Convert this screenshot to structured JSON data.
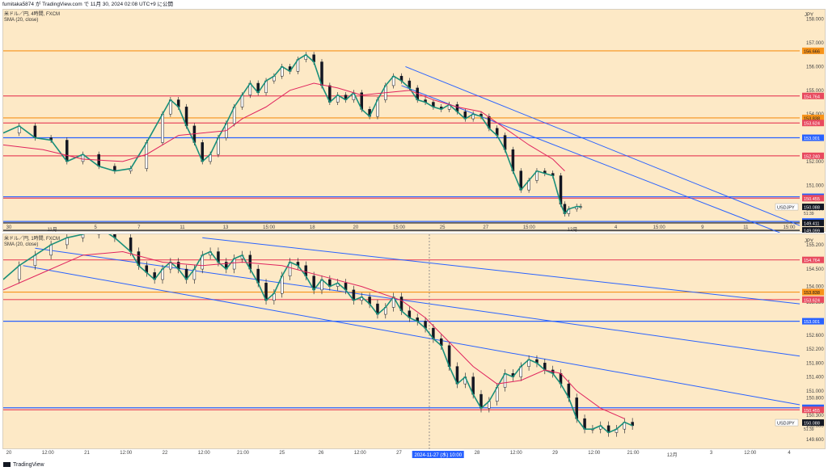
{
  "header": {
    "attribution": "fumitaka5874 が TradingView.com で 11月 30, 2024 02:08 UTC+9 に公開"
  },
  "footer": {
    "brand": "TradingView"
  },
  "chart_data": [
    {
      "type": "line",
      "pane": "upper",
      "legend": [
        "米ドル／円, 4時間, FXCM",
        "SMA (20, close)"
      ],
      "currency": "JPY",
      "symbol_tag": "USDJPY",
      "last_price": "150.088",
      "countdown": "51:39",
      "ylim": [
        149.0,
        158.4
      ],
      "y_ticks": [
        "158.000",
        "157.000",
        "156.000",
        "155.000",
        "154.000",
        "153.000",
        "152.000",
        "151.000",
        "150.000"
      ],
      "x_ticks": [
        "30",
        "11月",
        "5",
        "7",
        "11",
        "13",
        "15:00",
        "18",
        "20",
        "15:00",
        "25",
        "27",
        "15:00",
        "12月",
        "4",
        "15:00",
        "9",
        "11",
        "15:00"
      ],
      "horizontal_levels": [
        {
          "value": 156.666,
          "label": "156.666",
          "color": "#f7931a"
        },
        {
          "value": 154.764,
          "label": "154.764",
          "color": "#e84a5f"
        },
        {
          "value": 153.838,
          "label": "153.838",
          "color": "#f7931a"
        },
        {
          "value": 153.624,
          "label": "153.624",
          "color": "#e84a5f"
        },
        {
          "value": 153.001,
          "label": "153.001",
          "color": "#2962ff"
        },
        {
          "value": 152.24,
          "label": "152.240",
          "color": "#e84a5f"
        },
        {
          "value": 150.513,
          "label": "150.513",
          "color": "#2962ff"
        },
        {
          "value": 150.455,
          "label": "150.455",
          "color": "#e84a5f"
        },
        {
          "value": 149.472,
          "label": "149.472",
          "color": "#2962ff"
        },
        {
          "value": 149.411,
          "label": "149.411",
          "color": "#131722"
        },
        {
          "value": 149.099,
          "label": "149.099",
          "color": "#131722"
        }
      ],
      "price_path": [
        [
          0,
          153.2
        ],
        [
          4,
          153.5
        ],
        [
          8,
          153.0
        ],
        [
          12,
          152.9
        ],
        [
          16,
          152.0
        ],
        [
          20,
          152.3
        ],
        [
          24,
          151.8
        ],
        [
          28,
          151.6
        ],
        [
          32,
          151.7
        ],
        [
          36,
          152.8
        ],
        [
          40,
          154.0
        ],
        [
          42,
          154.6
        ],
        [
          44,
          154.3
        ],
        [
          46,
          153.5
        ],
        [
          48,
          152.8
        ],
        [
          50,
          152.0
        ],
        [
          52,
          152.3
        ],
        [
          54,
          153.0
        ],
        [
          56,
          153.6
        ],
        [
          58,
          154.3
        ],
        [
          60,
          154.8
        ],
        [
          62,
          155.3
        ],
        [
          64,
          154.9
        ],
        [
          66,
          155.4
        ],
        [
          68,
          155.6
        ],
        [
          70,
          156.0
        ],
        [
          72,
          155.8
        ],
        [
          74,
          156.3
        ],
        [
          76,
          156.5
        ],
        [
          78,
          156.2
        ],
        [
          80,
          155.2
        ],
        [
          82,
          154.5
        ],
        [
          84,
          154.8
        ],
        [
          86,
          154.6
        ],
        [
          88,
          154.9
        ],
        [
          90,
          154.2
        ],
        [
          92,
          153.9
        ],
        [
          94,
          154.6
        ],
        [
          96,
          155.2
        ],
        [
          98,
          155.6
        ],
        [
          100,
          155.4
        ],
        [
          102,
          155.1
        ],
        [
          104,
          154.6
        ],
        [
          106,
          154.5
        ],
        [
          108,
          154.3
        ],
        [
          110,
          154.2
        ],
        [
          112,
          154.4
        ],
        [
          114,
          154.1
        ],
        [
          116,
          153.8
        ],
        [
          118,
          154.0
        ],
        [
          120,
          153.9
        ],
        [
          122,
          153.4
        ],
        [
          124,
          153.1
        ],
        [
          126,
          152.5
        ],
        [
          128,
          151.6
        ],
        [
          130,
          150.8
        ],
        [
          132,
          151.2
        ],
        [
          134,
          151.6
        ],
        [
          136,
          151.5
        ],
        [
          138,
          151.4
        ],
        [
          140,
          150.2
        ],
        [
          141,
          149.8
        ],
        [
          142,
          150.0
        ],
        [
          144,
          150.1
        ],
        [
          145,
          150.1
        ]
      ],
      "sma_path": [
        [
          0,
          152.7
        ],
        [
          10,
          152.5
        ],
        [
          20,
          152.1
        ],
        [
          30,
          152.0
        ],
        [
          36,
          152.3
        ],
        [
          44,
          153.1
        ],
        [
          50,
          153.2
        ],
        [
          56,
          153.3
        ],
        [
          60,
          153.8
        ],
        [
          66,
          154.3
        ],
        [
          72,
          155.0
        ],
        [
          78,
          155.3
        ],
        [
          84,
          155.1
        ],
        [
          90,
          154.8
        ],
        [
          96,
          154.9
        ],
        [
          102,
          155.0
        ],
        [
          108,
          154.6
        ],
        [
          114,
          154.3
        ],
        [
          120,
          154.1
        ],
        [
          126,
          153.4
        ],
        [
          132,
          152.7
        ],
        [
          138,
          152.1
        ],
        [
          141,
          151.6
        ]
      ],
      "trend_lines": [
        {
          "from": [
            101,
            156.0
          ],
          "to": [
            200,
            149.3
          ],
          "color": "#2962ff"
        },
        {
          "from": [
            100,
            155.2
          ],
          "to": [
            195,
            149.0
          ],
          "color": "#2962ff"
        }
      ]
    },
    {
      "type": "line",
      "pane": "lower",
      "legend": [
        "米ドル／円, 1時間, FXCM",
        "SMA (20, close)"
      ],
      "currency": "JPY",
      "symbol_tag": "USDJPY",
      "last_price": "150.088",
      "countdown": "51:39",
      "ylim": [
        149.3,
        155.5
      ],
      "y_ticks": [
        "155.200",
        "154.500",
        "154.000",
        "153.550",
        "153.000",
        "152.600",
        "152.200",
        "151.800",
        "151.400",
        "151.000",
        "150.800",
        "150.300",
        "150.000",
        "149.600"
      ],
      "x_ticks": [
        "20",
        "12:00",
        "21",
        "12:00",
        "22",
        "12:00",
        "21:00",
        "25",
        "26",
        "12:00",
        "27",
        "2024-11-27 (水) 10:00",
        "28",
        "12:00",
        "29",
        "12:00",
        "21:00",
        "12月",
        "3",
        "12:00",
        "4"
      ],
      "crosshair_x": 107,
      "horizontal_levels": [
        {
          "value": 154.764,
          "label": "154.764",
          "color": "#e84a5f"
        },
        {
          "value": 153.838,
          "label": "153.838",
          "color": "#f7931a"
        },
        {
          "value": 153.624,
          "label": "153.624",
          "color": "#e84a5f"
        },
        {
          "value": 153.001,
          "label": "153.001",
          "color": "#2962ff"
        },
        {
          "value": 150.513,
          "label": "150.513",
          "color": "#2962ff"
        },
        {
          "value": 150.455,
          "label": "150.455",
          "color": "#e84a5f"
        }
      ],
      "price_path": [
        [
          0,
          154.2
        ],
        [
          4,
          154.6
        ],
        [
          8,
          154.9
        ],
        [
          12,
          155.2
        ],
        [
          16,
          155.4
        ],
        [
          20,
          155.5
        ],
        [
          24,
          155.7
        ],
        [
          28,
          155.4
        ],
        [
          32,
          155.0
        ],
        [
          34,
          154.6
        ],
        [
          36,
          154.4
        ],
        [
          38,
          154.2
        ],
        [
          40,
          154.5
        ],
        [
          42,
          154.7
        ],
        [
          44,
          154.5
        ],
        [
          46,
          154.2
        ],
        [
          48,
          154.5
        ],
        [
          50,
          154.9
        ],
        [
          52,
          155.0
        ],
        [
          54,
          154.7
        ],
        [
          56,
          154.5
        ],
        [
          58,
          154.8
        ],
        [
          60,
          154.9
        ],
        [
          62,
          154.5
        ],
        [
          64,
          154.1
        ],
        [
          66,
          153.6
        ],
        [
          68,
          153.8
        ],
        [
          70,
          154.3
        ],
        [
          72,
          154.7
        ],
        [
          74,
          154.6
        ],
        [
          76,
          154.3
        ],
        [
          78,
          153.9
        ],
        [
          80,
          154.2
        ],
        [
          82,
          154.0
        ],
        [
          84,
          154.1
        ],
        [
          86,
          153.9
        ],
        [
          88,
          153.6
        ],
        [
          90,
          153.7
        ],
        [
          92,
          153.5
        ],
        [
          94,
          153.2
        ],
        [
          96,
          153.4
        ],
        [
          98,
          153.7
        ],
        [
          100,
          153.3
        ],
        [
          102,
          153.1
        ],
        [
          104,
          153.0
        ],
        [
          106,
          152.8
        ],
        [
          108,
          152.5
        ],
        [
          110,
          152.3
        ],
        [
          112,
          151.7
        ],
        [
          114,
          151.2
        ],
        [
          116,
          151.4
        ],
        [
          118,
          150.9
        ],
        [
          120,
          150.5
        ],
        [
          122,
          150.7
        ],
        [
          124,
          151.1
        ],
        [
          126,
          151.5
        ],
        [
          128,
          151.4
        ],
        [
          130,
          151.7
        ],
        [
          132,
          151.9
        ],
        [
          134,
          151.8
        ],
        [
          136,
          151.6
        ],
        [
          138,
          151.5
        ],
        [
          140,
          151.2
        ],
        [
          142,
          150.8
        ],
        [
          144,
          150.2
        ],
        [
          146,
          149.9
        ],
        [
          148,
          149.9
        ],
        [
          150,
          150.0
        ],
        [
          152,
          149.8
        ],
        [
          154,
          149.9
        ],
        [
          156,
          150.1
        ],
        [
          158,
          150.0
        ]
      ],
      "sma_path": [
        [
          0,
          153.9
        ],
        [
          10,
          154.4
        ],
        [
          20,
          154.9
        ],
        [
          30,
          155.0
        ],
        [
          40,
          154.7
        ],
        [
          50,
          154.6
        ],
        [
          60,
          154.7
        ],
        [
          70,
          154.6
        ],
        [
          80,
          154.3
        ],
        [
          90,
          154.0
        ],
        [
          100,
          153.6
        ],
        [
          106,
          153.1
        ],
        [
          112,
          152.4
        ],
        [
          118,
          151.7
        ],
        [
          124,
          151.2
        ],
        [
          130,
          151.3
        ],
        [
          136,
          151.6
        ],
        [
          140,
          151.5
        ],
        [
          144,
          151.0
        ],
        [
          150,
          150.5
        ],
        [
          156,
          150.2
        ]
      ],
      "trend_lines": [
        {
          "from": [
            8,
            155.1
          ],
          "to": [
            200,
            152.0
          ],
          "color": "#2962ff"
        },
        {
          "from": [
            5,
            154.6
          ],
          "to": [
            200,
            150.6
          ],
          "color": "#2962ff"
        },
        {
          "from": [
            50,
            155.4
          ],
          "to": [
            200,
            153.5
          ],
          "color": "#2962ff"
        }
      ]
    }
  ]
}
